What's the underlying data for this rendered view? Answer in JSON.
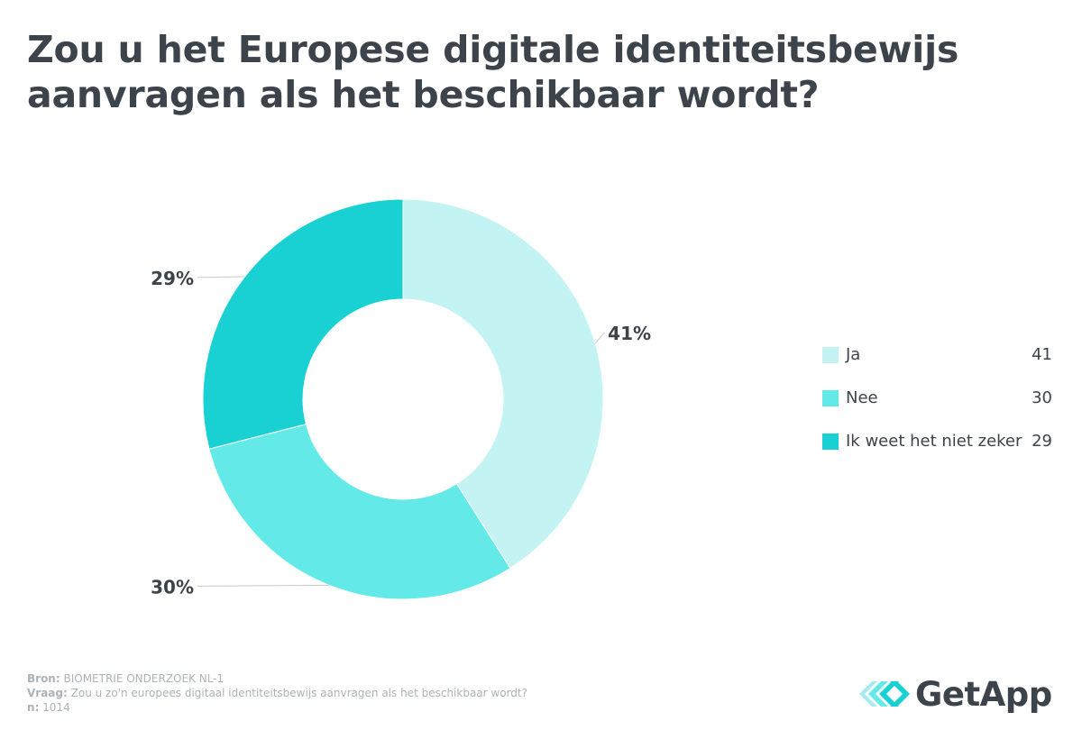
{
  "title": "Zou u het Europese digitale identiteitsbewijs aanvragen als het beschikbaar wordt?",
  "chart_data": {
    "type": "pie",
    "variant": "donut",
    "title": "Zou u het Europese digitale identiteitsbewijs aanvragen als het beschikbaar wordt?",
    "categories": [
      "Ja",
      "Nee",
      "Ik weet het niet zeker"
    ],
    "values": [
      41,
      30,
      29
    ],
    "data_labels": [
      "41%",
      "30%",
      "29%"
    ],
    "colors": [
      "#c3f3f2",
      "#64e9e9",
      "#19d1d2"
    ],
    "legend_position": "right"
  },
  "legend": {
    "items": [
      {
        "label": "Ja",
        "value": "41",
        "color": "#c3f3f2"
      },
      {
        "label": "Nee",
        "value": "30",
        "color": "#64e9e9"
      },
      {
        "label": "Ik weet het niet zeker",
        "value": "29",
        "color": "#19d1d2"
      }
    ]
  },
  "footer": {
    "source_label": "Bron:",
    "source_value": "BIOMETRIE ONDERZOEK NL-1",
    "question_label": "Vraag:",
    "question_value": "Zou u zo'n europees digitaal identiteitsbewijs aanvragen als het beschikbaar wordt?",
    "n_label": "n:",
    "n_value": "1014"
  },
  "logo": {
    "text": "GetApp",
    "icon": "getapp-chevrons-icon",
    "color": "#3d434b",
    "accent": "#19d1d2"
  },
  "colors": {
    "text": "#3d434b",
    "muted": "#aeb2b7",
    "leader": "#c7c9cc"
  }
}
